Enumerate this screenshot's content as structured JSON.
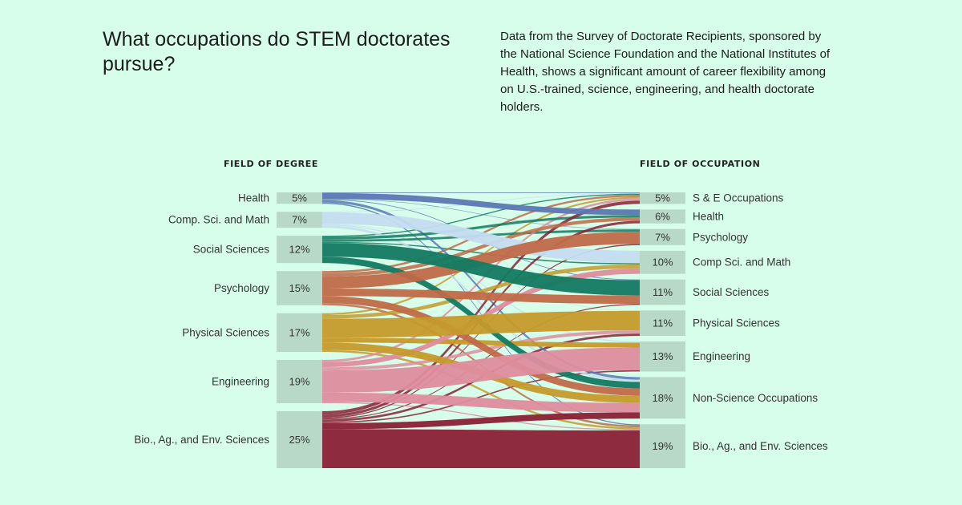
{
  "header": {
    "title": "What occupations do STEM doctorates pursue?",
    "description": "Data from the Survey of Doctorate Recipients, sponsored by the National Science Foundation and the National Institutes of Health, shows a significant amount of career flexibility among on U.S.-trained, science, engineering, and health doctorate holders."
  },
  "chart_data": {
    "type": "sankey",
    "left_title": "FIELD OF DEGREE",
    "right_title": "FIELD OF OCCUPATION",
    "left_nodes": [
      {
        "name": "Health",
        "pct_label": "5%",
        "value": 5,
        "color": "#5b77b3"
      },
      {
        "name": "Comp. Sci. and Math",
        "pct_label": "7%",
        "value": 7,
        "color": "#c4dcf0"
      },
      {
        "name": "Social Sciences",
        "pct_label": "12%",
        "value": 12,
        "color": "#137a62"
      },
      {
        "name": "Psychology",
        "pct_label": "15%",
        "value": 15,
        "color": "#c06a48"
      },
      {
        "name": "Physical Sciences",
        "pct_label": "17%",
        "value": 17,
        "color": "#c59a2b"
      },
      {
        "name": "Engineering",
        "pct_label": "19%",
        "value": 19,
        "color": "#de8d9e"
      },
      {
        "name": "Bio., Ag., and Env. Sciences",
        "pct_label": "25%",
        "value": 25,
        "color": "#8b2035"
      }
    ],
    "right_nodes": [
      {
        "name": "S & E Occupations",
        "pct_label": "5%",
        "value": 5
      },
      {
        "name": "Health",
        "pct_label": "6%",
        "value": 6
      },
      {
        "name": "Psychology",
        "pct_label": "7%",
        "value": 7
      },
      {
        "name": "Comp Sci. and Math",
        "pct_label": "10%",
        "value": 10
      },
      {
        "name": "Social Sciences",
        "pct_label": "11%",
        "value": 11
      },
      {
        "name": "Physical Sciences",
        "pct_label": "11%",
        "value": 11
      },
      {
        "name": "Engineering",
        "pct_label": "13%",
        "value": 13
      },
      {
        "name": "Non-Science Occupations",
        "pct_label": "18%",
        "value": 18
      },
      {
        "name": "Bio., Ag., and Env. Sciences",
        "pct_label": "19%",
        "value": 19
      }
    ],
    "flows": [
      [
        0,
        1,
        2.6
      ],
      [
        0,
        7,
        1.1
      ],
      [
        0,
        8,
        0.5
      ],
      [
        0,
        0,
        0.3
      ],
      [
        0,
        4,
        0.3
      ],
      [
        0,
        2,
        0.2
      ],
      [
        1,
        3,
        5.0
      ],
      [
        1,
        7,
        1.0
      ],
      [
        1,
        6,
        0.5
      ],
      [
        1,
        0,
        0.3
      ],
      [
        1,
        5,
        0.2
      ],
      [
        2,
        4,
        6.0
      ],
      [
        2,
        7,
        2.8
      ],
      [
        2,
        1,
        1.2
      ],
      [
        2,
        2,
        1.0
      ],
      [
        2,
        0,
        0.5
      ],
      [
        2,
        3,
        0.5
      ],
      [
        3,
        2,
        5.2
      ],
      [
        3,
        4,
        3.3
      ],
      [
        3,
        7,
        3.1
      ],
      [
        3,
        1,
        1.6
      ],
      [
        3,
        8,
        0.9
      ],
      [
        3,
        0,
        0.9
      ],
      [
        4,
        5,
        8.4
      ],
      [
        4,
        7,
        3.2
      ],
      [
        4,
        6,
        2.1
      ],
      [
        4,
        3,
        1.6
      ],
      [
        4,
        0,
        0.8
      ],
      [
        4,
        8,
        0.9
      ],
      [
        5,
        6,
        9.8
      ],
      [
        5,
        7,
        4.1
      ],
      [
        5,
        3,
        2.2
      ],
      [
        5,
        5,
        1.4
      ],
      [
        5,
        0,
        1.0
      ],
      [
        5,
        8,
        0.5
      ],
      [
        6,
        8,
        17.1
      ],
      [
        6,
        7,
        2.7
      ],
      [
        6,
        1,
        1.2
      ],
      [
        6,
        0,
        1.5
      ],
      [
        6,
        5,
        1.0
      ],
      [
        6,
        6,
        0.6
      ],
      [
        6,
        4,
        0.4
      ],
      [
        6,
        2,
        0.5
      ]
    ]
  }
}
